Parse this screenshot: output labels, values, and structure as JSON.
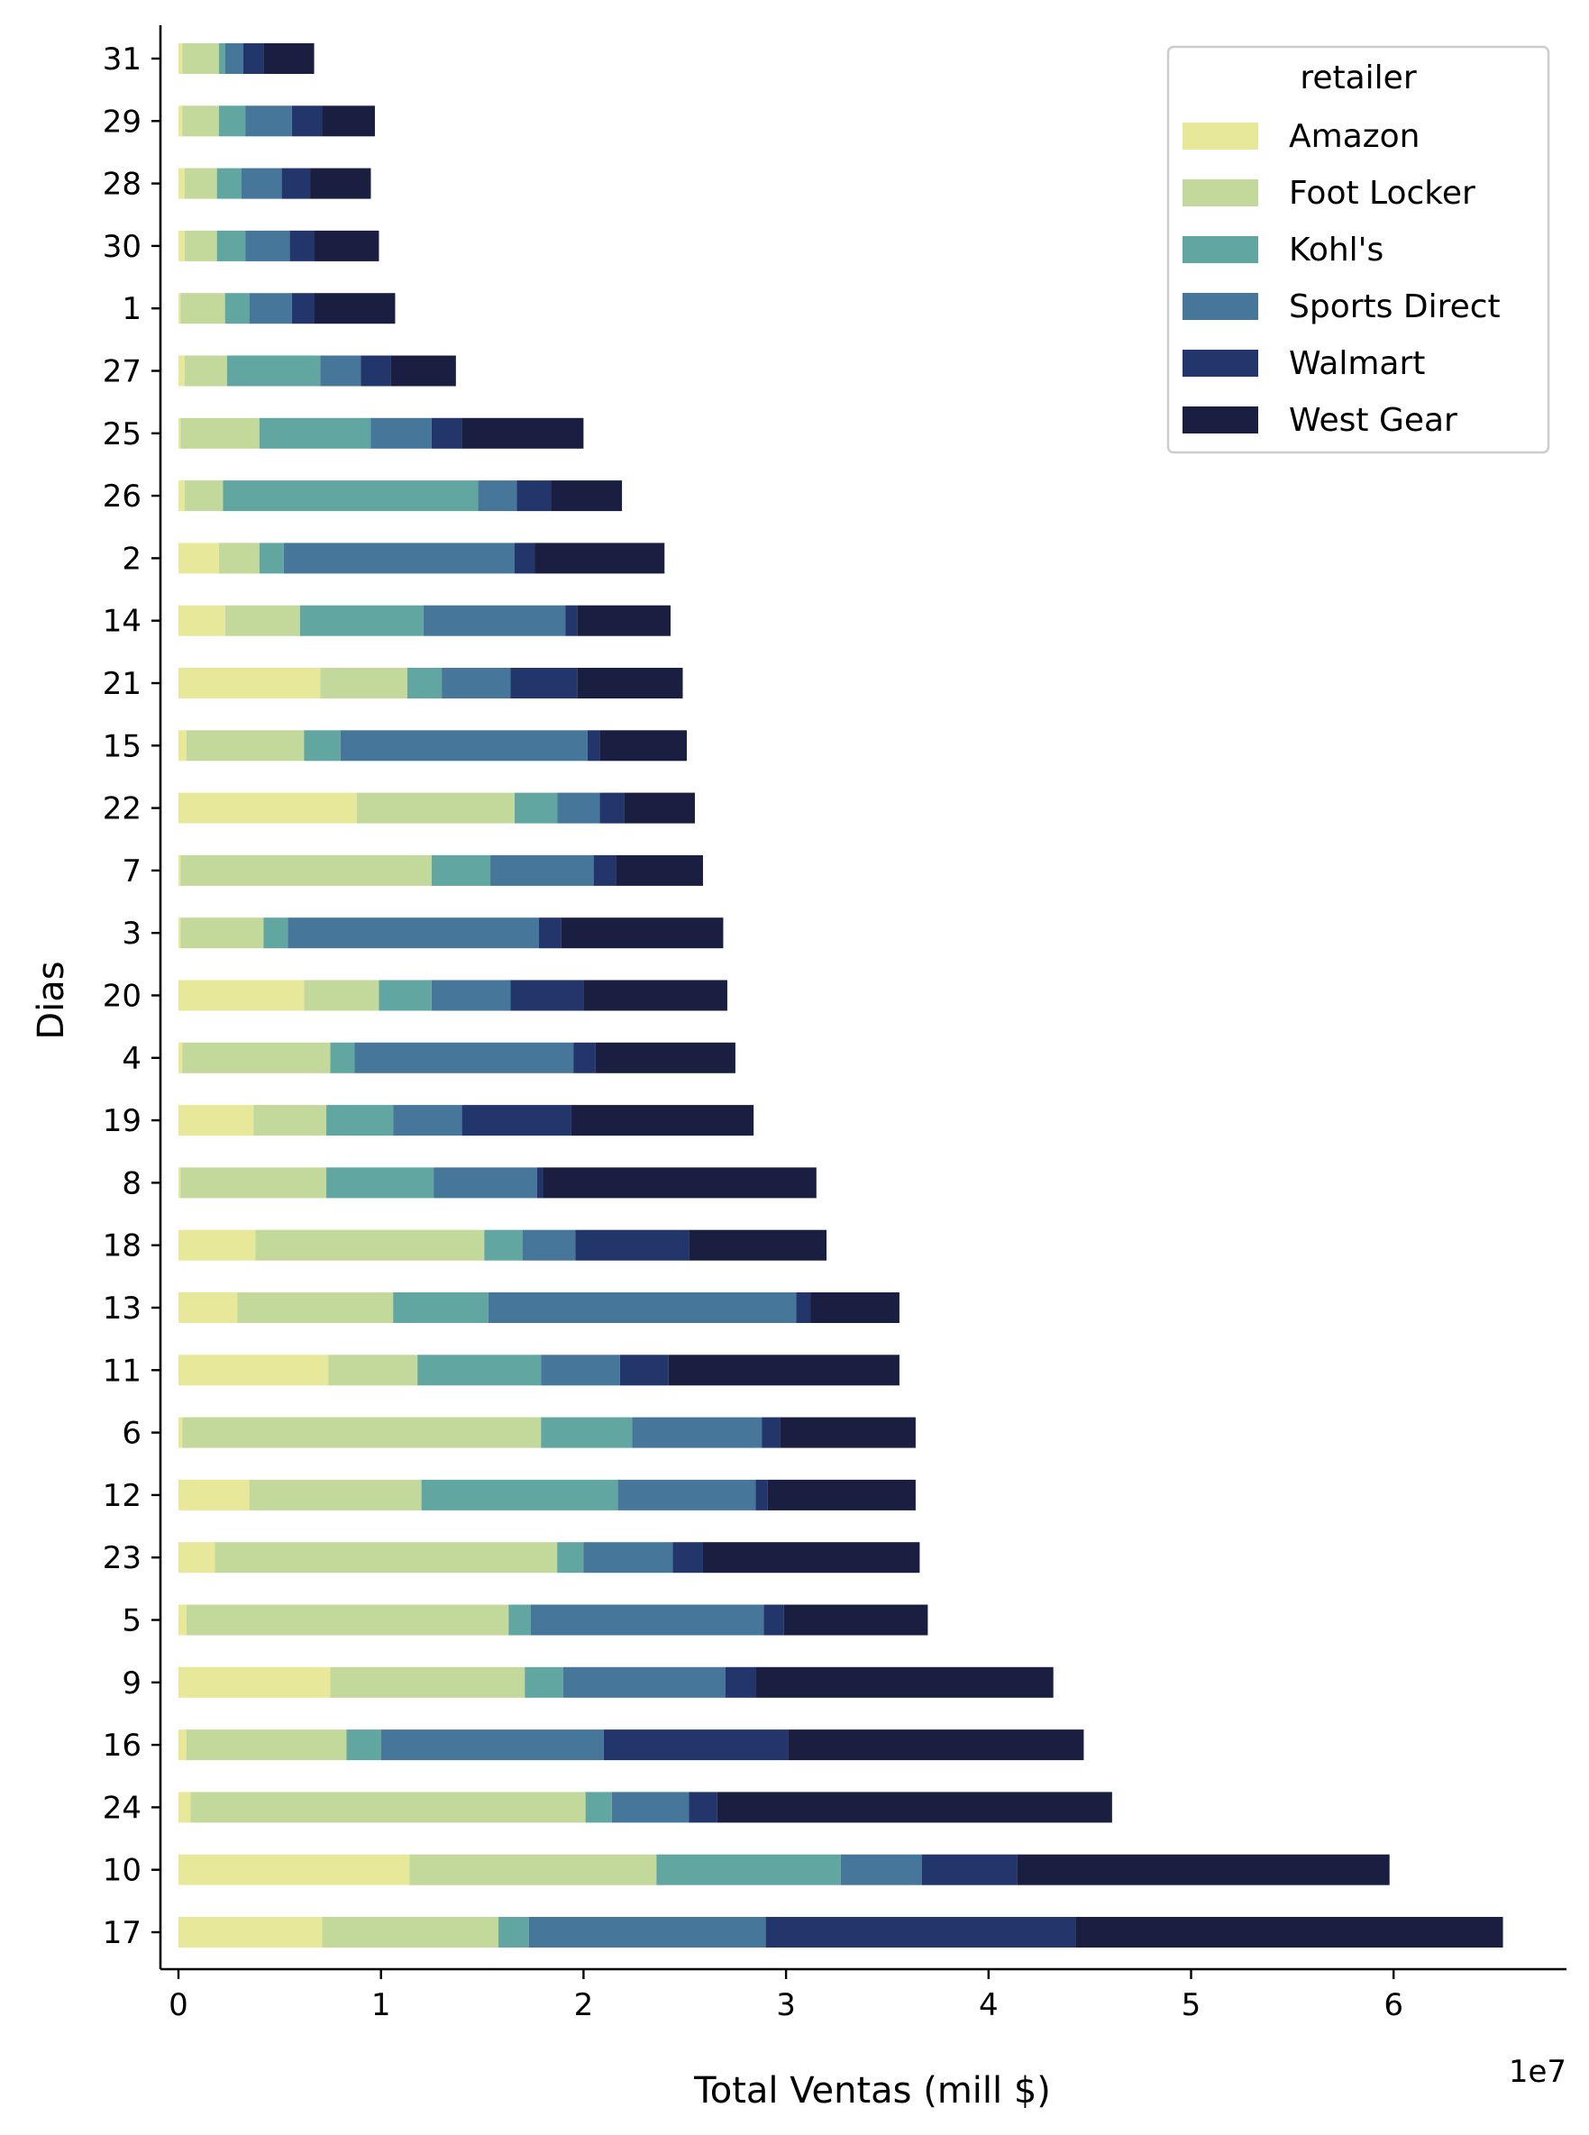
{
  "chart_data": {
    "type": "bar",
    "orientation": "horizontal",
    "stacked": true,
    "xlabel": "Total Ventas (mill $)",
    "ylabel": "Dias",
    "x_offset_label": "1e7",
    "x_scale": 10000000,
    "xlim": [
      -0.1,
      6.85
    ],
    "xticks": [
      "0",
      "1",
      "2",
      "3",
      "4",
      "5",
      "6"
    ],
    "grid": false,
    "legend": {
      "title": "retailer",
      "placement": "top-right"
    },
    "categories": [
      "31",
      "29",
      "28",
      "30",
      "1",
      "27",
      "25",
      "26",
      "2",
      "14",
      "21",
      "15",
      "22",
      "7",
      "3",
      "20",
      "4",
      "19",
      "8",
      "18",
      "13",
      "11",
      "6",
      "12",
      "23",
      "5",
      "9",
      "16",
      "24",
      "10",
      "17"
    ],
    "series": [
      {
        "name": "Amazon",
        "color": "#e8e89a",
        "values": [
          0.02,
          0.02,
          0.03,
          0.03,
          0.01,
          0.03,
          0.01,
          0.03,
          0.2,
          0.23,
          0.7,
          0.04,
          0.88,
          0.01,
          0.01,
          0.62,
          0.02,
          0.37,
          0.01,
          0.38,
          0.29,
          0.74,
          0.02,
          0.35,
          0.18,
          0.04,
          0.75,
          0.04,
          0.06,
          1.14,
          0.71
        ]
      },
      {
        "name": "Foot Locker",
        "color": "#c2d99b",
        "values": [
          0.18,
          0.18,
          0.16,
          0.16,
          0.22,
          0.21,
          0.39,
          0.19,
          0.2,
          0.37,
          0.43,
          0.58,
          0.78,
          1.24,
          0.41,
          0.37,
          0.73,
          0.36,
          0.72,
          1.13,
          0.77,
          0.44,
          1.77,
          0.85,
          1.69,
          1.59,
          0.96,
          0.79,
          1.95,
          1.22,
          0.87
        ]
      },
      {
        "name": "Kohl's",
        "color": "#62a6a2",
        "values": [
          0.03,
          0.13,
          0.12,
          0.14,
          0.12,
          0.46,
          0.55,
          1.26,
          0.12,
          0.61,
          0.17,
          0.18,
          0.21,
          0.29,
          0.12,
          0.26,
          0.12,
          0.33,
          0.53,
          0.19,
          0.47,
          0.61,
          0.45,
          0.97,
          0.13,
          0.11,
          0.19,
          0.17,
          0.13,
          0.91,
          0.15
        ]
      },
      {
        "name": "Sports Direct",
        "color": "#46779a",
        "values": [
          0.09,
          0.23,
          0.2,
          0.22,
          0.21,
          0.2,
          0.3,
          0.19,
          1.14,
          0.7,
          0.34,
          1.22,
          0.21,
          0.51,
          1.24,
          0.39,
          1.08,
          0.34,
          0.51,
          0.26,
          1.52,
          0.39,
          0.64,
          0.68,
          0.44,
          1.15,
          0.8,
          1.1,
          0.38,
          0.4,
          1.17
        ]
      },
      {
        "name": "Walmart",
        "color": "#23366b",
        "values": [
          0.1,
          0.15,
          0.14,
          0.12,
          0.11,
          0.15,
          0.15,
          0.17,
          0.1,
          0.06,
          0.33,
          0.06,
          0.12,
          0.11,
          0.11,
          0.36,
          0.11,
          0.54,
          0.03,
          0.56,
          0.07,
          0.24,
          0.09,
          0.06,
          0.15,
          0.1,
          0.15,
          0.91,
          0.14,
          0.47,
          1.53
        ]
      },
      {
        "name": "West Gear",
        "color": "#1a1f41",
        "values": [
          0.25,
          0.26,
          0.3,
          0.32,
          0.4,
          0.32,
          0.6,
          0.35,
          0.64,
          0.46,
          0.52,
          0.43,
          0.35,
          0.43,
          0.8,
          0.71,
          0.69,
          0.9,
          1.35,
          0.68,
          0.44,
          1.14,
          0.67,
          0.73,
          1.07,
          0.71,
          1.47,
          1.46,
          1.95,
          1.84,
          2.11
        ]
      }
    ]
  }
}
